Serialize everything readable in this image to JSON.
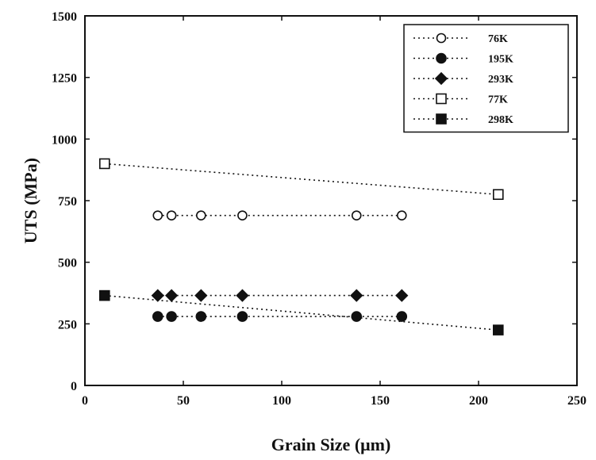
{
  "chart_data": {
    "type": "scatter",
    "xlabel": "Grain Size (μm)",
    "ylabel": "UTS (MPa)",
    "xlim": [
      0,
      250
    ],
    "ylim": [
      0,
      1500
    ],
    "xticks": [
      0,
      50,
      100,
      150,
      200,
      250
    ],
    "yticks": [
      0,
      250,
      500,
      750,
      1000,
      1250,
      1500
    ],
    "xtick_labels": [
      "0",
      "50",
      "100",
      "150",
      "200",
      "250"
    ],
    "ytick_labels": [
      "0",
      "250",
      "500",
      "750",
      "1000",
      "1250",
      "1500"
    ],
    "grid": false,
    "legend_position": "top-right",
    "series": [
      {
        "name": "76K",
        "marker": "circle-open",
        "line": "dotted",
        "x": [
          37,
          44,
          59,
          80,
          138,
          161
        ],
        "y": [
          690,
          690,
          690,
          690,
          690,
          690
        ]
      },
      {
        "name": "195K",
        "marker": "circle-filled",
        "line": "dotted",
        "x": [
          37,
          44,
          59,
          80,
          138,
          161
        ],
        "y": [
          280,
          280,
          280,
          280,
          280,
          280
        ]
      },
      {
        "name": "293K",
        "marker": "diamond-filled",
        "line": "dotted",
        "x": [
          37,
          44,
          59,
          80,
          138,
          161
        ],
        "y": [
          365,
          365,
          365,
          365,
          365,
          365
        ]
      },
      {
        "name": "77K",
        "marker": "square-open",
        "line": "dotted",
        "x": [
          10,
          210
        ],
        "y": [
          900,
          775
        ]
      },
      {
        "name": "298K",
        "marker": "square-filled",
        "line": "dotted",
        "x": [
          10,
          210
        ],
        "y": [
          365,
          225
        ]
      }
    ]
  },
  "colors": {
    "ink": "#111111",
    "background": "#ffffff"
  }
}
